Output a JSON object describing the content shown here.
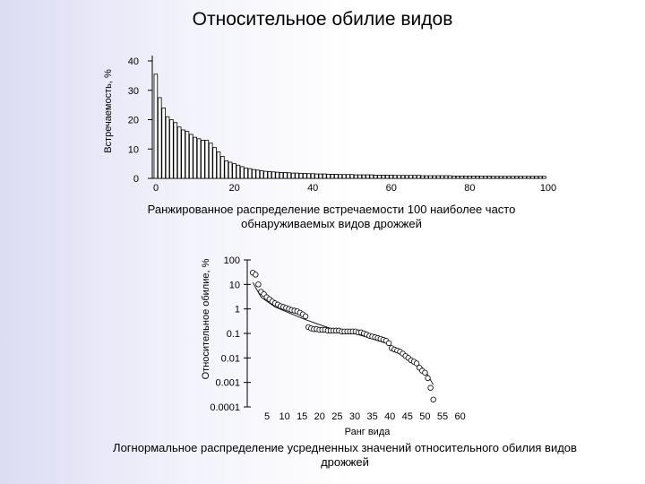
{
  "page_title": "Относительное обилие видов",
  "caption1": "Ранжированное распределение встречаемости 100 наиболее часто обнаруживаемых видов дрожжей",
  "caption2": "Логнормальное распределение усредненных значений относительного обилия видов дрожжей",
  "chart_data": [
    {
      "type": "bar",
      "ylabel": "Встречаемость, %",
      "xlabel": "",
      "xlim": [
        0,
        100
      ],
      "ylim": [
        0,
        40
      ],
      "x_ticks": [
        "0",
        "20",
        "40",
        "60",
        "80",
        "100"
      ],
      "y_ticks": [
        "0",
        "10",
        "20",
        "30",
        "40"
      ],
      "grid": false,
      "values": [
        35.5,
        27.5,
        24.0,
        21.0,
        20.0,
        19.0,
        17.5,
        16.5,
        16.0,
        15.0,
        14.0,
        13.5,
        13.0,
        13.0,
        12.0,
        10.5,
        9.0,
        7.5,
        6.0,
        5.5,
        5.0,
        4.5,
        4.0,
        3.5,
        3.3,
        3.0,
        2.8,
        2.6,
        2.4,
        2.3,
        2.2,
        2.1,
        2.0,
        2.0,
        1.9,
        1.8,
        1.8,
        1.7,
        1.7,
        1.6,
        1.6,
        1.5,
        1.5,
        1.5,
        1.4,
        1.4,
        1.4,
        1.3,
        1.3,
        1.3,
        1.3,
        1.2,
        1.2,
        1.2,
        1.2,
        1.2,
        1.1,
        1.1,
        1.1,
        1.1,
        1.1,
        1.0,
        1.0,
        1.0,
        1.0,
        1.0,
        1.0,
        1.0,
        0.9,
        0.9,
        0.9,
        0.9,
        0.9,
        0.9,
        0.9,
        0.9,
        0.8,
        0.8,
        0.8,
        0.8,
        0.8,
        0.8,
        0.8,
        0.8,
        0.8,
        0.8,
        0.7,
        0.7,
        0.7,
        0.7,
        0.7,
        0.7,
        0.7,
        0.7,
        0.7,
        0.7,
        0.7,
        0.7,
        0.7,
        0.7
      ]
    },
    {
      "type": "scatter",
      "ylabel": "Относительное обилие, %",
      "xlabel": "Ранг вида",
      "y_scale": "log",
      "ylim": [
        0.0001,
        100
      ],
      "xlim": [
        0,
        80
      ],
      "x_ticks": [
        "5",
        "10",
        "15",
        "20",
        "25",
        "30",
        "35",
        "40",
        "45",
        "50",
        "55",
        "60"
      ],
      "y_ticks": [
        "100",
        "10",
        "1",
        "0.1",
        "0.01",
        "0.001",
        "0.0001"
      ],
      "marker": "open-circle",
      "series": [
        {
          "points": [
            [
              2,
              30
            ],
            [
              3,
              25
            ],
            [
              4,
              10
            ],
            [
              5,
              5
            ],
            [
              6,
              4
            ],
            [
              7,
              3
            ],
            [
              8,
              2.5
            ],
            [
              9,
              2
            ],
            [
              10,
              1.7
            ],
            [
              11,
              1.5
            ],
            [
              12,
              1.3
            ],
            [
              13,
              1.2
            ],
            [
              14,
              1.1
            ],
            [
              15,
              1.0
            ],
            [
              16,
              0.9
            ],
            [
              17,
              0.85
            ],
            [
              18,
              0.8
            ],
            [
              19,
              0.7
            ],
            [
              20,
              0.6
            ],
            [
              21,
              0.5
            ],
            [
              22,
              0.18
            ],
            [
              23,
              0.16
            ],
            [
              24,
              0.15
            ],
            [
              25,
              0.15
            ],
            [
              26,
              0.14
            ],
            [
              27,
              0.14
            ],
            [
              28,
              0.14
            ],
            [
              29,
              0.13
            ],
            [
              30,
              0.13
            ],
            [
              31,
              0.13
            ],
            [
              32,
              0.13
            ],
            [
              33,
              0.13
            ],
            [
              34,
              0.12
            ],
            [
              35,
              0.12
            ],
            [
              36,
              0.12
            ],
            [
              37,
              0.12
            ],
            [
              38,
              0.12
            ],
            [
              39,
              0.12
            ],
            [
              40,
              0.11
            ],
            [
              41,
              0.11
            ],
            [
              42,
              0.1
            ],
            [
              43,
              0.09
            ],
            [
              44,
              0.08
            ],
            [
              45,
              0.075
            ],
            [
              46,
              0.07
            ],
            [
              47,
              0.065
            ],
            [
              48,
              0.06
            ],
            [
              49,
              0.055
            ],
            [
              50,
              0.05
            ],
            [
              51,
              0.04
            ],
            [
              52,
              0.025
            ],
            [
              53,
              0.022
            ],
            [
              54,
              0.02
            ],
            [
              55,
              0.018
            ],
            [
              56,
              0.015
            ],
            [
              57,
              0.012
            ],
            [
              58,
              0.01
            ],
            [
              59,
              0.008
            ],
            [
              60,
              0.007
            ],
            [
              61,
              0.006
            ],
            [
              62,
              0.004
            ],
            [
              63,
              0.003
            ],
            [
              64,
              0.0025
            ],
            [
              65,
              0.0015
            ],
            [
              66,
              0.0006
            ],
            [
              67,
              0.0002
            ]
          ]
        },
        {
          "fit_line": [
            [
              2,
              12
            ],
            [
              5,
              3
            ],
            [
              10,
              1.2
            ],
            [
              15,
              0.7
            ],
            [
              20,
              0.4
            ],
            [
              25,
              0.25
            ],
            [
              30,
              0.16
            ],
            [
              35,
              0.12
            ],
            [
              40,
              0.09
            ],
            [
              45,
              0.06
            ],
            [
              50,
              0.04
            ],
            [
              55,
              0.02
            ],
            [
              60,
              0.008
            ],
            [
              63,
              0.004
            ],
            [
              65,
              0.002
            ],
            [
              67,
              0.0008
            ]
          ]
        }
      ]
    }
  ]
}
